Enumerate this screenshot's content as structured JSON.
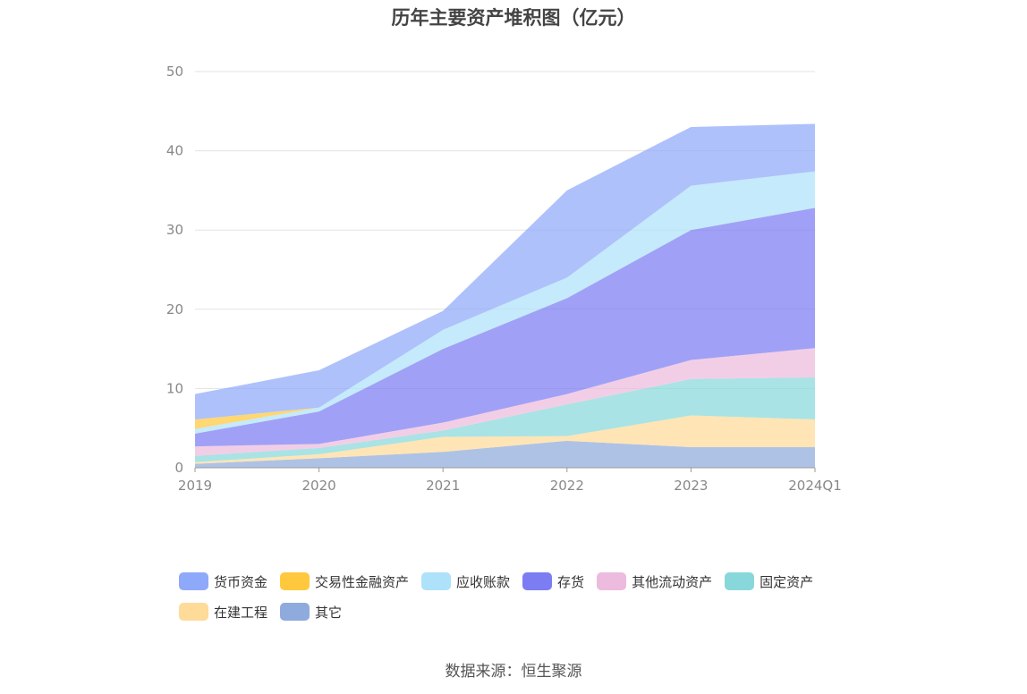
{
  "chart_data": {
    "type": "area",
    "stacked": true,
    "title": "历年主要资产堆积图（亿元）",
    "source": "数据来源：恒生聚源",
    "categories": [
      "2019",
      "2020",
      "2021",
      "2022",
      "2023",
      "2024Q1"
    ],
    "ylim": [
      0,
      50
    ],
    "yticks": [
      "0",
      "10",
      "20",
      "30",
      "40",
      "50"
    ],
    "grid": true,
    "legend_position": "bottom",
    "series": [
      {
        "name": "其它",
        "color": "#8FAADC",
        "values": [
          0.5,
          1.2,
          2.0,
          3.4,
          2.6,
          2.6
        ]
      },
      {
        "name": "在建工程",
        "color": "#FFDB99",
        "values": [
          0.2,
          0.5,
          1.9,
          0.6,
          4.0,
          3.5
        ]
      },
      {
        "name": "固定资产",
        "color": "#88D8DB",
        "values": [
          0.8,
          0.8,
          0.8,
          4.0,
          4.6,
          5.3
        ]
      },
      {
        "name": "其他流动资产",
        "color": "#EDBBDD",
        "values": [
          1.2,
          0.5,
          1.0,
          1.3,
          2.4,
          3.7
        ]
      },
      {
        "name": "存货",
        "color": "#7C7DF2",
        "values": [
          1.6,
          4.1,
          9.3,
          12.1,
          16.4,
          17.7
        ]
      },
      {
        "name": "应收账款",
        "color": "#AEE2FA",
        "values": [
          0.6,
          0.5,
          2.4,
          2.6,
          5.6,
          4.6
        ]
      },
      {
        "name": "交易性金融资产",
        "color": "#FFC83D",
        "values": [
          1.2,
          0.0,
          0.0,
          0.0,
          0.0,
          0.0
        ]
      },
      {
        "name": "货币资金",
        "color": "#8FA9FA",
        "values": [
          3.2,
          4.7,
          2.4,
          11.0,
          7.4,
          6.0
        ]
      }
    ],
    "legend_order": [
      "货币资金",
      "交易性金融资产",
      "应收账款",
      "存货",
      "其他流动资产",
      "固定资产",
      "在建工程",
      "其它"
    ]
  }
}
